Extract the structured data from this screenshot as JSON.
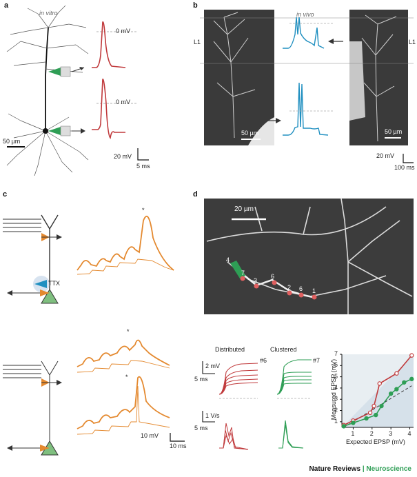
{
  "panels": {
    "a": {
      "label": "a",
      "condition": "in vitro",
      "upper_trace_label": "0 mV",
      "lower_trace_label": "0 mV",
      "scalebar_morph": "50 µm",
      "scalebar_v": "20 mV",
      "scalebar_t": "5 ms"
    },
    "b": {
      "label": "b",
      "condition": "in vivo",
      "layer_left": "L1",
      "layer_right": "L1",
      "scalebar_left": "50 µm",
      "scalebar_right": "50 µm",
      "scalebar_v": "20 mV",
      "scalebar_t": "100 ms"
    },
    "c": {
      "label": "c",
      "drug": "TTX",
      "star_top": "*",
      "star_mid": "*",
      "star_bot": "*",
      "scalebar_v": "10 mV",
      "scalebar_t": "10 ms"
    },
    "d": {
      "label": "d",
      "scalebar_image": "20 µm",
      "spine_numbers": [
        "4",
        "7",
        "3",
        "6",
        "2",
        "6",
        "1"
      ],
      "distributed_title": "Distributed",
      "clustered_title": "Clustered",
      "distributed_tag": "#6",
      "clustered_tag": "#7",
      "scalebar_mv": "2 mV",
      "scalebar_ms1": "5 ms",
      "scalebar_vs": "1 V/s",
      "scalebar_ms2": "5 ms"
    }
  },
  "chart_data": {
    "type": "line",
    "xlabel": "Expected EPSP (mV)",
    "ylabel": "Measured EPSP (mV)",
    "xlim": [
      0.4,
      4.2
    ],
    "ylim": [
      0.5,
      7
    ],
    "xticks": [
      "1",
      "2",
      "3",
      "4"
    ],
    "yticks": [
      "1",
      "2",
      "3",
      "4",
      "5",
      "6",
      "7"
    ],
    "series": [
      {
        "color": "#c0393b",
        "points": [
          [
            0.5,
            0.7
          ],
          [
            1.0,
            1.1
          ],
          [
            1.9,
            1.8
          ],
          [
            2.1,
            2.4
          ],
          [
            2.4,
            4.4
          ],
          [
            3.3,
            5.3
          ],
          [
            4.1,
            6.9
          ]
        ]
      },
      {
        "color": "#2e9e55",
        "points": [
          [
            0.5,
            0.6
          ],
          [
            1.0,
            0.9
          ],
          [
            1.7,
            1.3
          ],
          [
            2.2,
            1.6
          ],
          [
            2.5,
            2.4
          ],
          [
            3.0,
            3.5
          ],
          [
            3.3,
            3.9
          ],
          [
            3.7,
            4.5
          ],
          [
            4.1,
            4.8
          ]
        ]
      }
    ],
    "reference_line": {
      "style": "dashed",
      "points": [
        [
          0.5,
          0.5
        ],
        [
          4.1,
          4.2
        ]
      ]
    }
  },
  "footer": {
    "journal": "Nature Reviews",
    "separator": "|",
    "subject": "Neuroscience"
  },
  "colors": {
    "red": "#c0393b",
    "blue": "#1f8fc0",
    "orange": "#e4892f",
    "green": "#2e9e55",
    "teal": "#1aa387"
  }
}
